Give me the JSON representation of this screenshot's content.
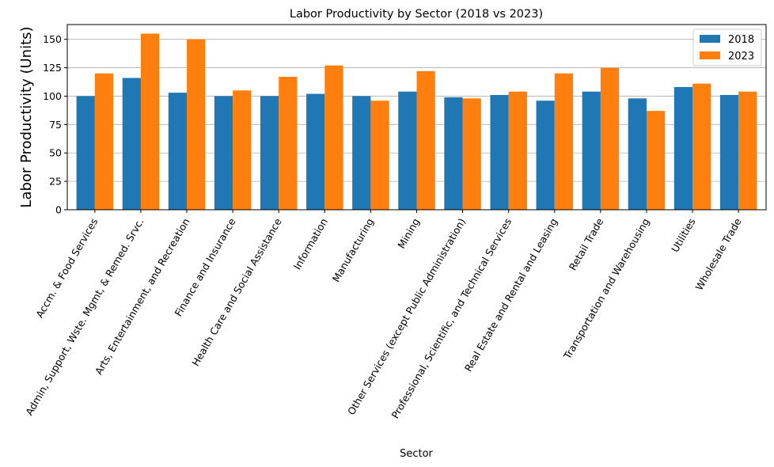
{
  "chart_data": {
    "type": "bar",
    "title": "Labor Productivity by Sector (2018 vs 2023)",
    "xlabel": "Sector",
    "ylabel": "Labor Productivity (Units)",
    "ylim": [
      0,
      163
    ],
    "yticks": [
      "0",
      "25",
      "50",
      "75",
      "100",
      "125",
      "150"
    ],
    "grid": "horizontal",
    "legend_position": "top-right",
    "categories": [
      "Accm. & Food Services",
      "Admin, Support, Wste. Mgmt, & Remed. Srvc.",
      "Arts, Entertainment, and Recreation",
      "Finance and Insurance",
      "Health Care and Social Assistance",
      "Information",
      "Manufacturing",
      "Mining",
      "Other Services (except Public Administration)",
      "Professional, Scientific, and Technical Services",
      "Real Estate and Rental and Leasing",
      "Retail Trade",
      "Transportation and Warehousing",
      "Utilities",
      "Wholesale Trade"
    ],
    "series": [
      {
        "name": "2018",
        "color": "#1f77b4",
        "values": [
          100,
          116,
          103,
          100,
          100,
          102,
          100,
          104,
          99,
          101,
          96,
          104,
          98,
          108,
          101
        ]
      },
      {
        "name": "2023",
        "color": "#ff7f0e",
        "values": [
          120,
          155,
          150,
          105,
          117,
          127,
          96,
          122,
          98,
          104,
          120,
          125,
          87,
          111,
          104
        ]
      }
    ]
  }
}
